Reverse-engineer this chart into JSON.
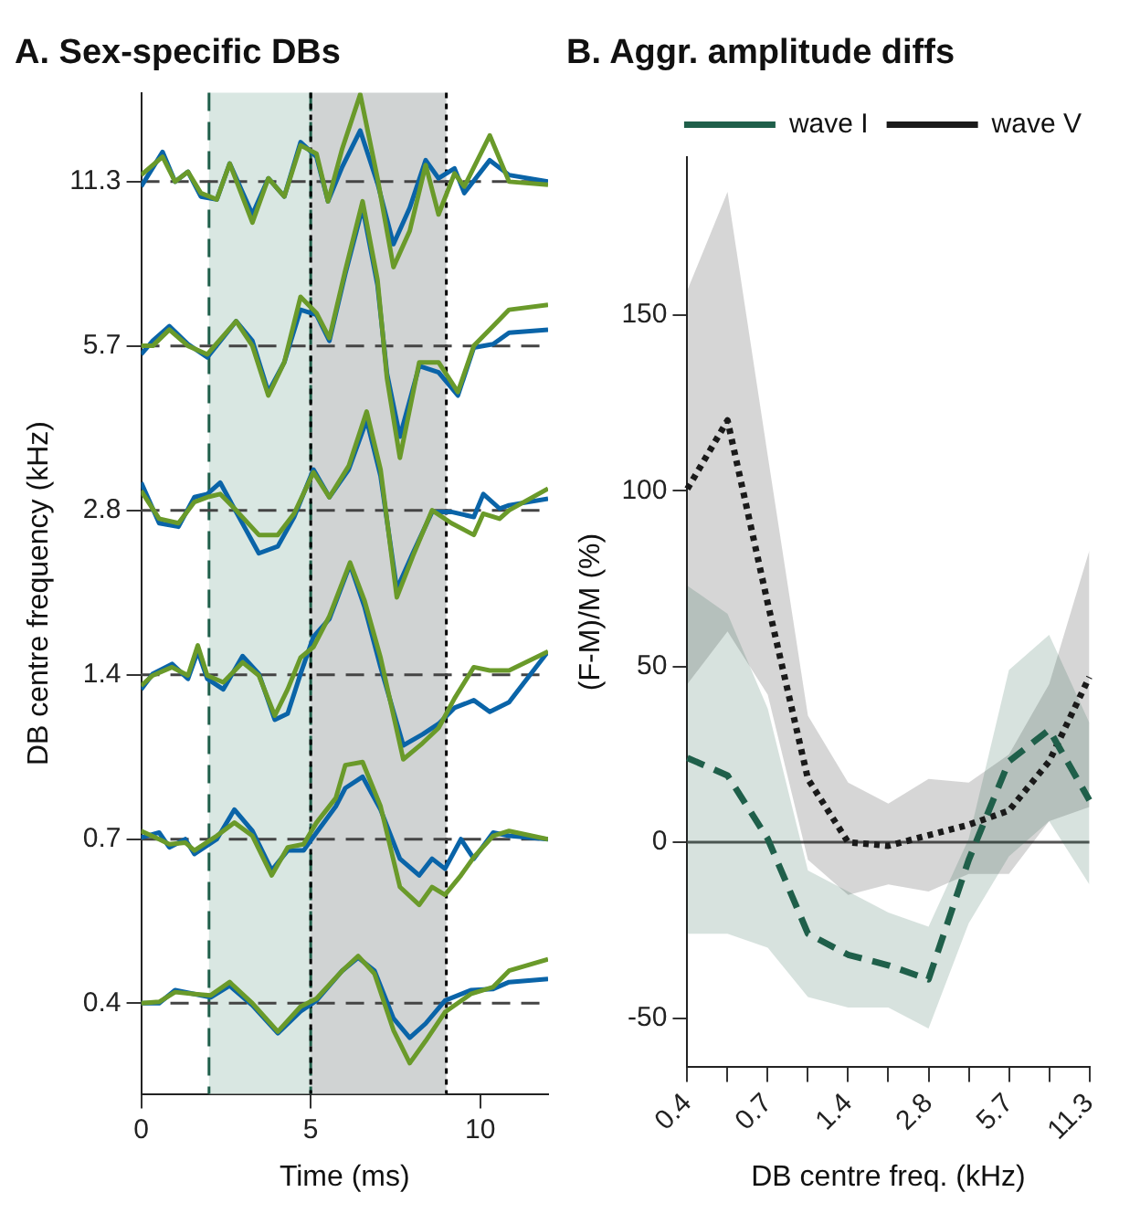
{
  "chart_data": [
    {
      "type": "line",
      "title": "A. Sex-specific DBs",
      "xlabel": "Time (ms)",
      "ylabel": "DB centre frequency (kHz)",
      "log": "y",
      "xlim": [
        0,
        12
      ],
      "xticks": [
        0,
        5,
        10
      ],
      "ylim": [
        0.2415,
        16.45
      ],
      "yticks": [
        {
          "value": 0.354,
          "label": "0.4"
        },
        {
          "value": 0.707,
          "label": "0.7"
        },
        {
          "value": 1.414,
          "label": "1.4"
        },
        {
          "value": 2.828,
          "label": "2.8"
        },
        {
          "value": 5.657,
          "label": "5.7"
        },
        {
          "value": 11.314,
          "label": "11.3"
        }
      ],
      "grid": false,
      "legend": false,
      "bands": [
        {
          "axis": "x",
          "from": 2,
          "to": 5,
          "color": "#d9e7e2"
        },
        {
          "axis": "x",
          "from": 5,
          "to": 9,
          "color": "#d0d3d3"
        }
      ],
      "ref_lines": [
        {
          "axis": "x",
          "value": 2,
          "color": "#1f5f4a",
          "line_style": "dashed"
        },
        {
          "axis": "x",
          "value": 5,
          "color": "#1f5f4a",
          "line_style": "dashed"
        },
        {
          "axis": "x",
          "value": 5,
          "color": "#000000",
          "line_style": "dotted"
        },
        {
          "axis": "x",
          "value": 9,
          "color": "#000000",
          "line_style": "dotted"
        },
        {
          "axis": "y",
          "value": 0.354,
          "color": "#444444",
          "line_style": "dashed"
        },
        {
          "axis": "y",
          "value": 0.707,
          "color": "#444444",
          "line_style": "dashed"
        },
        {
          "axis": "y",
          "value": 1.414,
          "color": "#444444",
          "line_style": "dashed"
        },
        {
          "axis": "y",
          "value": 2.828,
          "color": "#444444",
          "line_style": "dashed"
        },
        {
          "axis": "y",
          "value": 5.657,
          "color": "#444444",
          "line_style": "dashed"
        },
        {
          "axis": "y",
          "value": 11.314,
          "color": "#444444",
          "line_style": "dashed"
        }
      ],
      "series": [
        {
          "color": "#6a9a2a",
          "x": [
            0,
            0.63,
            1.0,
            1.38,
            1.76,
            2.23,
            2.61,
            3.28,
            3.75,
            4.22,
            4.7,
            5.17,
            5.51,
            5.93,
            6.46,
            6.97,
            7.44,
            7.92,
            8.39,
            8.77,
            9.24,
            9.53,
            10.28,
            10.85,
            12
          ],
          "values": [
            11.63,
            12.56,
            11.31,
            11.79,
            10.78,
            10.49,
            12.21,
            9.52,
            11.47,
            10.62,
            13.18,
            12.73,
            10.41,
            13.0,
            16.34,
            11.47,
            7.89,
            9.19,
            12.13,
            9.85,
            11.71,
            11.08,
            13.74,
            11.31,
            11.16
          ]
        },
        {
          "color": "#0a64a8",
          "x": [
            0,
            0.63,
            1.0,
            1.38,
            1.76,
            2.23,
            2.61,
            3.28,
            3.75,
            4.22,
            4.7,
            5.17,
            5.51,
            5.93,
            6.46,
            6.97,
            7.44,
            7.92,
            8.39,
            8.77,
            9.24,
            9.53,
            10.28,
            10.85,
            12
          ],
          "values": [
            11.08,
            12.82,
            11.31,
            11.79,
            10.62,
            10.49,
            12.21,
            9.85,
            11.47,
            10.62,
            13.36,
            12.56,
            10.41,
            12.04,
            14.03,
            11.23,
            8.69,
            10.13,
            12.38,
            11.47,
            11.96,
            10.78,
            12.38,
            11.63,
            11.31
          ]
        },
        {
          "color": "#6a9a2a",
          "x": [
            0,
            0.34,
            0.83,
            1.38,
            1.95,
            2.8,
            3.28,
            3.75,
            4.22,
            4.7,
            5.17,
            5.55,
            6.02,
            6.53,
            6.97,
            7.25,
            7.63,
            8.2,
            8.77,
            9.34,
            9.81,
            10.38,
            10.85,
            12
          ],
          "values": [
            5.66,
            5.66,
            6.06,
            5.66,
            5.46,
            6.28,
            5.66,
            4.59,
            5.28,
            6.96,
            6.5,
            5.85,
            7.78,
            10.41,
            7.47,
            4.93,
            3.53,
            5.28,
            5.28,
            4.66,
            5.66,
            6.15,
            6.59,
            6.73
          ]
        },
        {
          "color": "#0a64a8",
          "x": [
            0,
            0.34,
            0.83,
            1.38,
            1.95,
            2.8,
            3.28,
            3.75,
            4.22,
            4.7,
            5.17,
            5.55,
            6.02,
            6.53,
            6.97,
            7.25,
            7.63,
            8.2,
            8.77,
            9.34,
            9.81,
            10.38,
            10.85,
            12
          ],
          "values": [
            5.46,
            5.78,
            6.15,
            5.7,
            5.39,
            6.28,
            5.78,
            4.66,
            5.28,
            6.59,
            6.45,
            5.78,
            7.67,
            10.13,
            7.31,
            5.03,
            3.86,
            5.2,
            5.06,
            4.59,
            5.62,
            5.7,
            5.98,
            6.06
          ]
        },
        {
          "color": "#6a9a2a",
          "x": [
            0,
            0.53,
            1.1,
            1.57,
            1.95,
            2.33,
            2.8,
            3.47,
            4.03,
            4.51,
            5.08,
            5.55,
            6.12,
            6.65,
            7.06,
            7.54,
            8.01,
            8.58,
            9.15,
            9.81,
            10.09,
            10.57,
            10.85,
            12
          ],
          "values": [
            3.07,
            2.73,
            2.68,
            2.93,
            2.99,
            3.03,
            2.83,
            2.55,
            2.55,
            2.79,
            3.32,
            2.99,
            3.41,
            4.29,
            3.36,
            1.96,
            2.33,
            2.83,
            2.68,
            2.55,
            2.79,
            2.73,
            2.83,
            3.1
          ]
        },
        {
          "color": "#0a64a8",
          "x": [
            0,
            0.53,
            1.1,
            1.57,
            1.95,
            2.33,
            2.8,
            3.47,
            4.03,
            4.51,
            5.08,
            5.55,
            6.12,
            6.65,
            7.06,
            7.54,
            8.01,
            8.58,
            9.15,
            9.81,
            10.09,
            10.57,
            10.85,
            12
          ],
          "values": [
            3.18,
            2.68,
            2.64,
            2.99,
            3.03,
            3.18,
            2.81,
            2.36,
            2.43,
            2.75,
            3.36,
            2.99,
            3.36,
            4.14,
            3.27,
            2.03,
            2.36,
            2.81,
            2.81,
            2.75,
            3.03,
            2.85,
            2.89,
            2.97
          ]
        },
        {
          "color": "#6a9a2a",
          "x": [
            0,
            0.34,
            0.91,
            1.38,
            1.67,
            1.95,
            2.42,
            2.99,
            3.47,
            3.94,
            4.32,
            4.7,
            5.08,
            5.55,
            6.16,
            6.59,
            7.06,
            7.73,
            8.3,
            8.77,
            9.24,
            9.81,
            10.28,
            10.85,
            12
          ],
          "values": [
            1.35,
            1.41,
            1.46,
            1.41,
            1.6,
            1.41,
            1.37,
            1.49,
            1.41,
            1.19,
            1.33,
            1.52,
            1.59,
            1.81,
            2.27,
            1.93,
            1.52,
            0.99,
            1.06,
            1.13,
            1.28,
            1.46,
            1.44,
            1.44,
            1.56
          ]
        },
        {
          "color": "#0a64a8",
          "x": [
            0,
            0.34,
            0.91,
            1.38,
            1.67,
            1.95,
            2.42,
            2.99,
            3.47,
            3.94,
            4.32,
            4.7,
            5.08,
            5.55,
            6.16,
            6.59,
            7.06,
            7.73,
            8.3,
            8.77,
            9.24,
            9.81,
            10.28,
            10.85,
            12
          ],
          "values": [
            1.33,
            1.42,
            1.48,
            1.39,
            1.56,
            1.39,
            1.33,
            1.53,
            1.42,
            1.17,
            1.2,
            1.42,
            1.66,
            1.79,
            2.25,
            1.88,
            1.46,
            1.05,
            1.1,
            1.15,
            1.23,
            1.27,
            1.21,
            1.26,
            1.56
          ]
        },
        {
          "color": "#6a9a2a",
          "x": [
            0,
            0.53,
            0.83,
            1.3,
            1.57,
            2.23,
            2.75,
            3.28,
            3.85,
            4.32,
            4.79,
            5.17,
            5.74,
            6.02,
            6.53,
            7.06,
            7.63,
            8.2,
            8.58,
            8.96,
            9.43,
            9.81,
            10.38,
            10.85,
            12
          ],
          "values": [
            0.732,
            0.707,
            0.692,
            0.697,
            0.674,
            0.717,
            0.758,
            0.717,
            0.607,
            0.683,
            0.692,
            0.758,
            0.841,
            0.966,
            0.979,
            0.812,
            0.578,
            0.536,
            0.578,
            0.559,
            0.607,
            0.655,
            0.717,
            0.732,
            0.707
          ]
        },
        {
          "color": "#0a64a8",
          "x": [
            0,
            0.53,
            0.83,
            1.3,
            1.57,
            2.23,
            2.75,
            3.28,
            3.85,
            4.32,
            4.79,
            5.17,
            5.74,
            6.02,
            6.53,
            7.06,
            7.63,
            8.2,
            8.58,
            8.96,
            9.43,
            9.81,
            10.38,
            10.85,
            12
          ],
          "values": [
            0.712,
            0.727,
            0.683,
            0.707,
            0.664,
            0.707,
            0.801,
            0.732,
            0.62,
            0.674,
            0.674,
            0.727,
            0.812,
            0.877,
            0.92,
            0.801,
            0.651,
            0.607,
            0.651,
            0.624,
            0.707,
            0.651,
            0.727,
            0.717,
            0.707
          ]
        },
        {
          "color": "#6a9a2a",
          "x": [
            0,
            0.53,
            1.0,
            1.57,
            2.05,
            2.61,
            3.28,
            4.03,
            4.7,
            5.17,
            5.93,
            6.4,
            6.88,
            7.44,
            7.92,
            8.39,
            8.96,
            9.72,
            10.38,
            10.85,
            12
          ],
          "values": [
            0.354,
            0.356,
            0.371,
            0.368,
            0.366,
            0.387,
            0.354,
            0.314,
            0.349,
            0.361,
            0.406,
            0.432,
            0.401,
            0.316,
            0.275,
            0.302,
            0.341,
            0.368,
            0.379,
            0.406,
            0.426
          ]
        },
        {
          "color": "#0a64a8",
          "x": [
            0,
            0.53,
            1.0,
            1.57,
            2.05,
            2.61,
            3.28,
            4.03,
            4.7,
            5.17,
            5.93,
            6.4,
            6.88,
            7.44,
            7.92,
            8.39,
            8.96,
            9.72,
            10.38,
            10.85,
            12
          ],
          "values": [
            0.354,
            0.354,
            0.374,
            0.368,
            0.363,
            0.381,
            0.351,
            0.312,
            0.342,
            0.358,
            0.406,
            0.429,
            0.406,
            0.332,
            0.306,
            0.325,
            0.358,
            0.374,
            0.376,
            0.387,
            0.392
          ]
        }
      ]
    },
    {
      "type": "line",
      "title": "B. Aggr. amplitude diffs",
      "xlabel": "DB centre freq. (kHz)",
      "ylabel": "(F-M)/M (%)",
      "categories": [
        "0.4",
        null,
        "0.7",
        null,
        "1.4",
        null,
        "2.8",
        null,
        "5.7",
        null,
        "11.3"
      ],
      "ylim": [
        -64,
        195
      ],
      "yticks": [
        -50,
        0,
        50,
        100,
        150
      ],
      "grid": false,
      "legend": "top right",
      "ref_lines": [
        {
          "axis": "y",
          "value": 0,
          "color": "#555555"
        }
      ],
      "series": [
        {
          "name": "wave I",
          "color": "#1f5f4a",
          "line_style": "dashed",
          "values": [
            24,
            19,
            1,
            -26,
            -32,
            -35,
            -39,
            -5,
            23,
            32,
            12
          ],
          "lower": [
            -26,
            -26,
            -30,
            -44,
            -47,
            -47,
            -53,
            -23,
            -4,
            6,
            -12
          ],
          "upper": [
            73,
            65,
            38,
            -8,
            -14,
            -20,
            -24,
            1,
            49,
            59,
            34
          ]
        },
        {
          "name": "wave V",
          "color": "#1a1a1a",
          "line_style": "dotted",
          "values": [
            100.5,
            120,
            68,
            18,
            0,
            -1,
            2,
            5,
            9,
            23,
            47
          ],
          "lower": [
            45,
            60,
            42,
            -5,
            -15,
            -12,
            -14,
            -9,
            -9,
            6,
            10
          ],
          "upper": [
            157,
            185,
            110,
            36,
            17,
            11,
            18,
            17,
            25,
            45,
            83
          ]
        }
      ]
    }
  ]
}
